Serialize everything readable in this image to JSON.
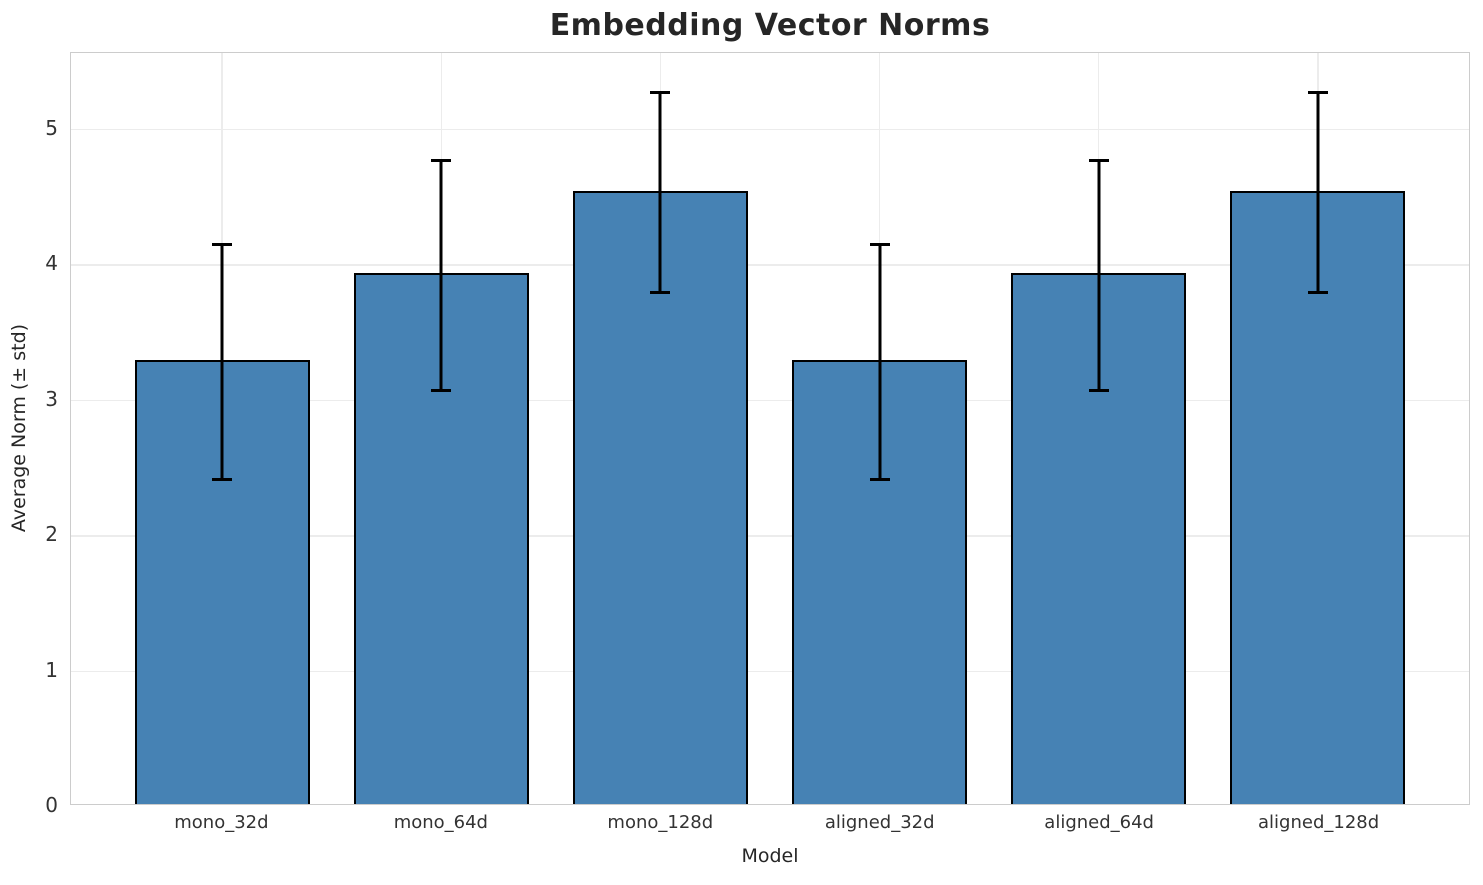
{
  "figure": {
    "background": "#ffffff",
    "text_color": "#262626",
    "tick_color": "#333333",
    "grid_color": "#ececec",
    "spine_color": "#cccccc"
  },
  "chart_data": {
    "type": "bar",
    "title": "Embedding Vector Norms",
    "xlabel": "Model",
    "ylabel": "Average Norm (± std)",
    "categories": [
      "mono_32d",
      "mono_64d",
      "mono_128d",
      "aligned_32d",
      "aligned_64d",
      "aligned_128d"
    ],
    "series": [
      {
        "name": "Average Norm",
        "values": [
          3.28,
          3.92,
          4.53,
          3.28,
          3.92,
          4.53
        ],
        "errors": [
          0.88,
          0.86,
          0.75,
          0.88,
          0.86,
          0.75
        ]
      }
    ],
    "ylim": [
      0,
      5.56
    ],
    "yticks": [
      0,
      1,
      2,
      3,
      4,
      5
    ],
    "grid": true,
    "legend": false,
    "bar_color": "#4682B4",
    "bar_edge_color": "#000000",
    "error_color": "#000000",
    "bar_width_fraction": 0.8,
    "x_margin_units": 0.69
  }
}
